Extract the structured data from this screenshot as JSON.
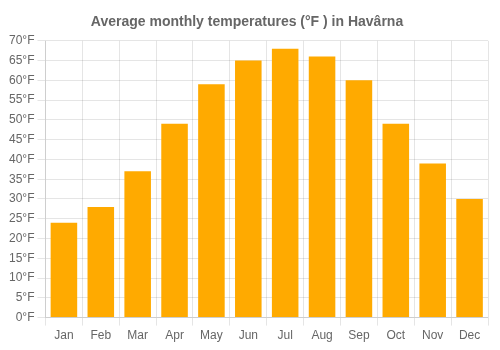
{
  "chart_data": {
    "type": "bar",
    "title": "Average monthly temperatures (°F ) in Havârna",
    "categories": [
      "Jan",
      "Feb",
      "Mar",
      "Apr",
      "May",
      "Jun",
      "Jul",
      "Aug",
      "Sep",
      "Oct",
      "Nov",
      "Dec"
    ],
    "values": [
      24,
      28,
      37,
      49,
      59,
      65,
      68,
      66,
      60,
      49,
      39,
      30
    ],
    "color": "#FFAA00",
    "ylim": [
      0,
      70
    ],
    "yticks": [
      {
        "value": 0,
        "label": "0°F"
      },
      {
        "value": 5,
        "label": "5°F"
      },
      {
        "value": 10,
        "label": "10°F"
      },
      {
        "value": 15,
        "label": "15°F"
      },
      {
        "value": 20,
        "label": "20°F"
      },
      {
        "value": 25,
        "label": "25°F"
      },
      {
        "value": 30,
        "label": "30°F"
      },
      {
        "value": 35,
        "label": "35°F"
      },
      {
        "value": 40,
        "label": "40°F"
      },
      {
        "value": 45,
        "label": "45°F"
      },
      {
        "value": 50,
        "label": "50°F"
      },
      {
        "value": 55,
        "label": "55°F"
      },
      {
        "value": 60,
        "label": "60°F"
      },
      {
        "value": 65,
        "label": "65°F"
      },
      {
        "value": 70,
        "label": "70°F"
      }
    ],
    "grid": true
  }
}
